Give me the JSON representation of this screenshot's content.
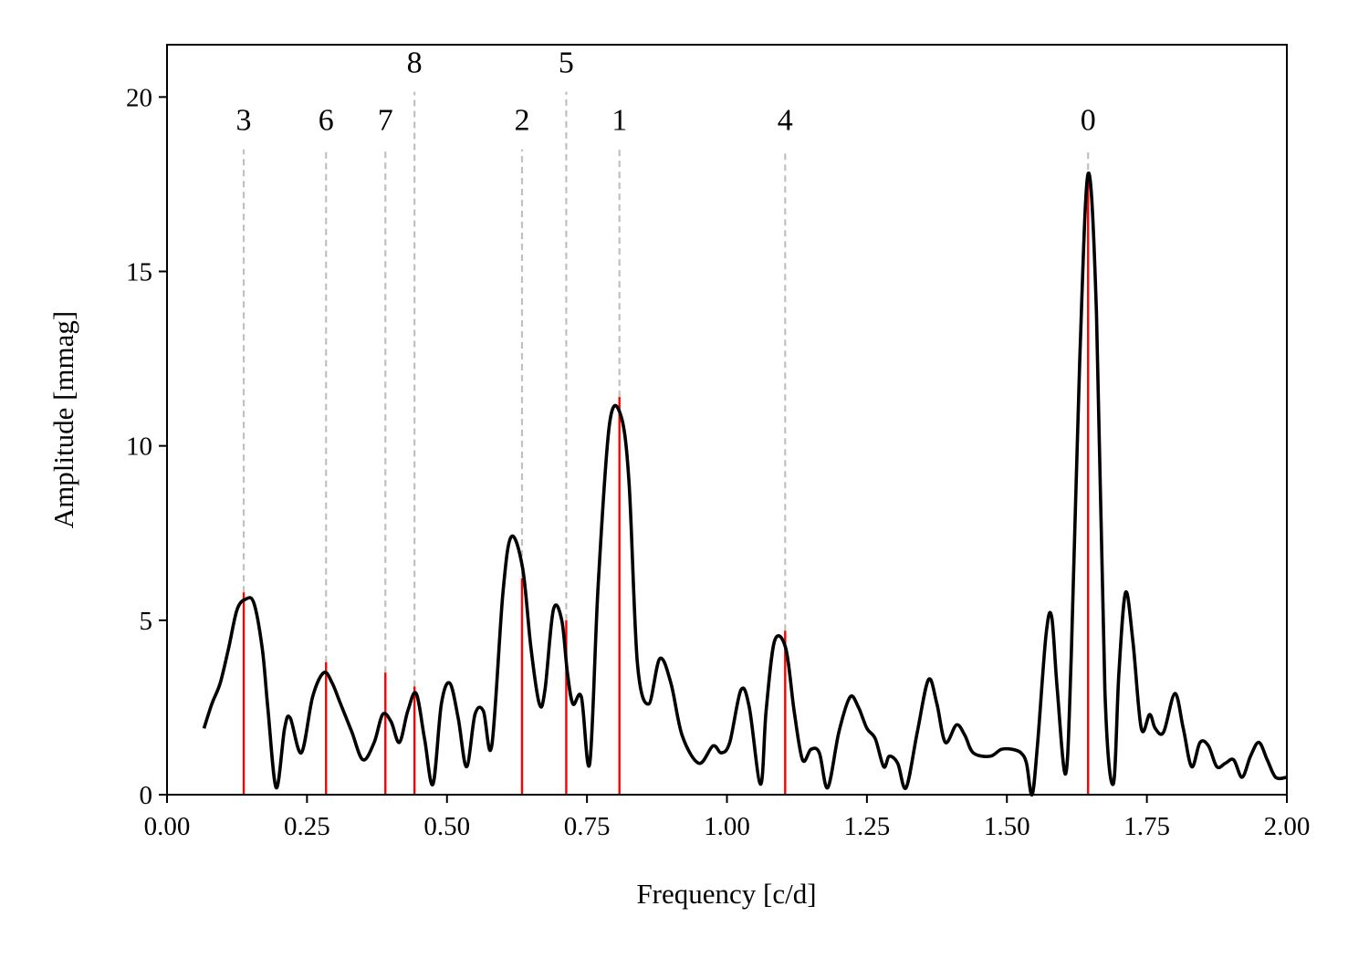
{
  "chart_data": {
    "type": "line",
    "title": "",
    "xlabel": "Frequency [c/d]",
    "ylabel": "Amplitude [mmag]",
    "xlim": [
      0.0,
      2.0
    ],
    "ylim": [
      0,
      21.5
    ],
    "xticks": [
      "0.00",
      "0.25",
      "0.50",
      "0.75",
      "1.00",
      "1.25",
      "1.50",
      "1.75",
      "2.00"
    ],
    "yticks": [
      "0",
      "5",
      "10",
      "15",
      "20"
    ],
    "grid": false,
    "colors": {
      "spectrum": "#000000",
      "peaks": "#ff0000",
      "markers": "#c0c0c0"
    },
    "spectrum": {
      "x": [
        0.066,
        0.08,
        0.095,
        0.11,
        0.125,
        0.14,
        0.155,
        0.17,
        0.18,
        0.195,
        0.21,
        0.22,
        0.24,
        0.26,
        0.28,
        0.295,
        0.31,
        0.33,
        0.35,
        0.37,
        0.385,
        0.4,
        0.415,
        0.43,
        0.445,
        0.46,
        0.475,
        0.49,
        0.505,
        0.52,
        0.535,
        0.55,
        0.565,
        0.58,
        0.6,
        0.615,
        0.635,
        0.65,
        0.665,
        0.675,
        0.69,
        0.705,
        0.715,
        0.725,
        0.74,
        0.755,
        0.77,
        0.79,
        0.81,
        0.825,
        0.84,
        0.86,
        0.88,
        0.9,
        0.92,
        0.95,
        0.975,
        0.99,
        1.005,
        1.025,
        1.04,
        1.06,
        1.07,
        1.085,
        1.105,
        1.12,
        1.135,
        1.15,
        1.165,
        1.18,
        1.2,
        1.22,
        1.235,
        1.25,
        1.265,
        1.28,
        1.29,
        1.305,
        1.32,
        1.34,
        1.36,
        1.375,
        1.39,
        1.41,
        1.425,
        1.44,
        1.47,
        1.49,
        1.51,
        1.525,
        1.535,
        1.545,
        1.555,
        1.57,
        1.58,
        1.59,
        1.605,
        1.615,
        1.63,
        1.645,
        1.66,
        1.675,
        1.69,
        1.7,
        1.712,
        1.725,
        1.74,
        1.755,
        1.765,
        1.78,
        1.8,
        1.815,
        1.83,
        1.845,
        1.86,
        1.875,
        1.89,
        1.905,
        1.92,
        1.935,
        1.95,
        1.965,
        1.98,
        2.0
      ],
      "y": [
        1.9,
        2.6,
        3.2,
        4.2,
        5.3,
        5.6,
        5.5,
        4.2,
        2.5,
        0.2,
        1.9,
        2.2,
        1.2,
        2.8,
        3.5,
        3.2,
        2.6,
        1.8,
        1.0,
        1.5,
        2.3,
        2.1,
        1.5,
        2.4,
        2.9,
        1.6,
        0.3,
        2.6,
        3.2,
        2.2,
        0.8,
        2.3,
        2.4,
        1.4,
        5.8,
        7.4,
        6.5,
        4.2,
        2.6,
        3.0,
        5.3,
        5.0,
        3.5,
        2.6,
        2.8,
        0.9,
        6.0,
        10.6,
        10.9,
        9.0,
        3.8,
        2.6,
        3.9,
        3.2,
        1.7,
        0.9,
        1.4,
        1.2,
        1.5,
        3.0,
        2.5,
        0.3,
        2.4,
        4.4,
        4.2,
        2.4,
        1.0,
        1.3,
        1.2,
        0.2,
        1.8,
        2.8,
        2.5,
        1.9,
        1.6,
        0.8,
        1.1,
        0.9,
        0.2,
        1.8,
        3.3,
        2.6,
        1.5,
        2.0,
        1.7,
        1.2,
        1.1,
        1.3,
        1.3,
        1.2,
        0.9,
        0.0,
        1.5,
        4.6,
        5.1,
        3.0,
        0.6,
        4.0,
        12.4,
        17.8,
        13.8,
        3.0,
        0.3,
        3.5,
        5.8,
        4.4,
        1.9,
        2.3,
        1.9,
        1.8,
        2.9,
        1.9,
        0.8,
        1.5,
        1.4,
        0.8,
        0.9,
        1.0,
        0.5,
        1.1,
        1.5,
        1.0,
        0.5,
        0.5
      ]
    },
    "peaks": [
      {
        "label": "0",
        "frequency": 1.645,
        "amplitude": 17.6
      },
      {
        "label": "1",
        "frequency": 0.808,
        "amplitude": 11.4
      },
      {
        "label": "2",
        "frequency": 0.634,
        "amplitude": 6.2
      },
      {
        "label": "3",
        "frequency": 0.137,
        "amplitude": 5.8
      },
      {
        "label": "4",
        "frequency": 1.104,
        "amplitude": 4.7
      },
      {
        "label": "5",
        "frequency": 0.713,
        "amplitude": 5.0
      },
      {
        "label": "6",
        "frequency": 0.284,
        "amplitude": 3.8
      },
      {
        "label": "7",
        "frequency": 0.39,
        "amplitude": 3.5
      },
      {
        "label": "8",
        "frequency": 0.442,
        "amplitude": 3.1
      }
    ],
    "peak_label_rows": {
      "0": 18.9,
      "1": 18.9,
      "2": 18.9,
      "3": 18.9,
      "4": 18.9,
      "5": 20.55,
      "6": 18.9,
      "7": 18.9,
      "8": 20.55
    }
  }
}
